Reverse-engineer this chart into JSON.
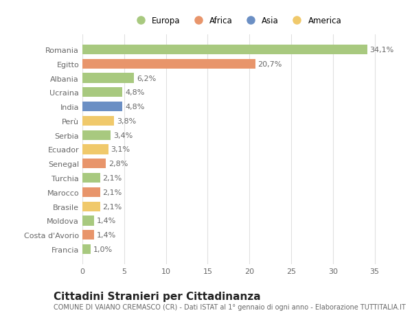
{
  "countries": [
    "Francia",
    "Costa d'Avorio",
    "Moldova",
    "Brasile",
    "Marocco",
    "Turchia",
    "Senegal",
    "Ecuador",
    "Serbia",
    "Perù",
    "India",
    "Ucraina",
    "Albania",
    "Egitto",
    "Romania"
  ],
  "values": [
    1.0,
    1.4,
    1.4,
    2.1,
    2.1,
    2.1,
    2.8,
    3.1,
    3.4,
    3.8,
    4.8,
    4.8,
    6.2,
    20.7,
    34.1
  ],
  "labels": [
    "1,0%",
    "1,4%",
    "1,4%",
    "2,1%",
    "2,1%",
    "2,1%",
    "2,8%",
    "3,1%",
    "3,4%",
    "3,8%",
    "4,8%",
    "4,8%",
    "6,2%",
    "20,7%",
    "34,1%"
  ],
  "colors": [
    "#a8c97f",
    "#e8956b",
    "#a8c97f",
    "#f0c96b",
    "#e8956b",
    "#a8c97f",
    "#e8956b",
    "#f0c96b",
    "#a8c97f",
    "#f0c96b",
    "#6b8fc4",
    "#a8c97f",
    "#a8c97f",
    "#e8956b",
    "#a8c97f"
  ],
  "legend_labels": [
    "Europa",
    "Africa",
    "Asia",
    "America"
  ],
  "legend_colors": [
    "#a8c97f",
    "#e8956b",
    "#6b8fc4",
    "#f0c96b"
  ],
  "title": "Cittadini Stranieri per Cittadinanza",
  "subtitle": "COMUNE DI VAIANO CREMASCO (CR) - Dati ISTAT al 1° gennaio di ogni anno - Elaborazione TUTTITALIA.IT",
  "xlim": [
    0,
    37
  ],
  "xticks": [
    0,
    5,
    10,
    15,
    20,
    25,
    30,
    35
  ],
  "bg_color": "#ffffff",
  "grid_color": "#e0e0e0",
  "bar_height": 0.68,
  "label_fontsize": 8,
  "tick_fontsize": 8,
  "title_fontsize": 11,
  "subtitle_fontsize": 7
}
